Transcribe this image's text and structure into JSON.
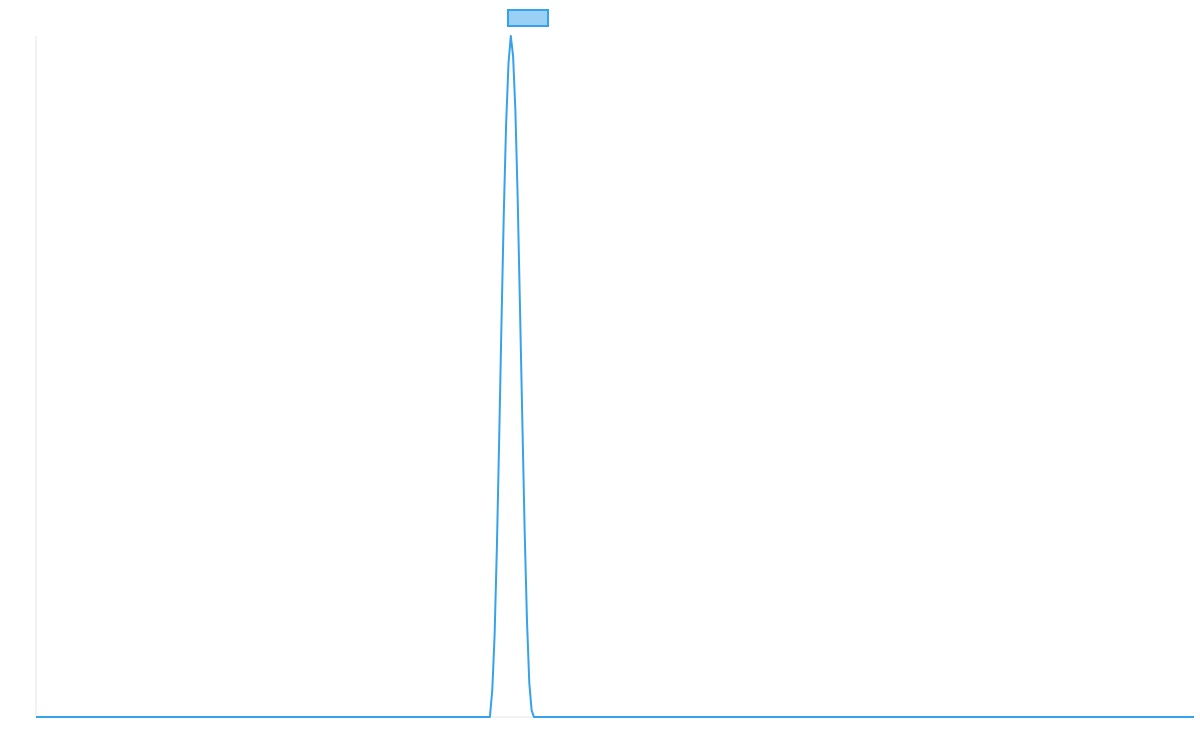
{
  "chart_data": {
    "type": "line",
    "title": "",
    "xlabel": "",
    "ylabel": "",
    "grid": false,
    "legend": {
      "placement": "top-center",
      "entries": [
        {
          "label": "",
          "color": "#36a2eb",
          "fill": "#9ad0f5"
        }
      ]
    },
    "xlim": [
      0,
      1000
    ],
    "ylim": [
      0,
      1
    ],
    "series": [
      {
        "color": "#36a2eb",
        "x": [
          0,
          392,
          394,
          396,
          398,
          400,
          402,
          404,
          406,
          408,
          410,
          412,
          414,
          416,
          418,
          420,
          422,
          424,
          426,
          428,
          430,
          432,
          1000
        ],
        "y": [
          0,
          0,
          0.04,
          0.12,
          0.25,
          0.41,
          0.58,
          0.74,
          0.87,
          0.96,
          1.0,
          0.97,
          0.89,
          0.76,
          0.6,
          0.43,
          0.27,
          0.14,
          0.05,
          0.01,
          0,
          0,
          0
        ]
      }
    ]
  }
}
